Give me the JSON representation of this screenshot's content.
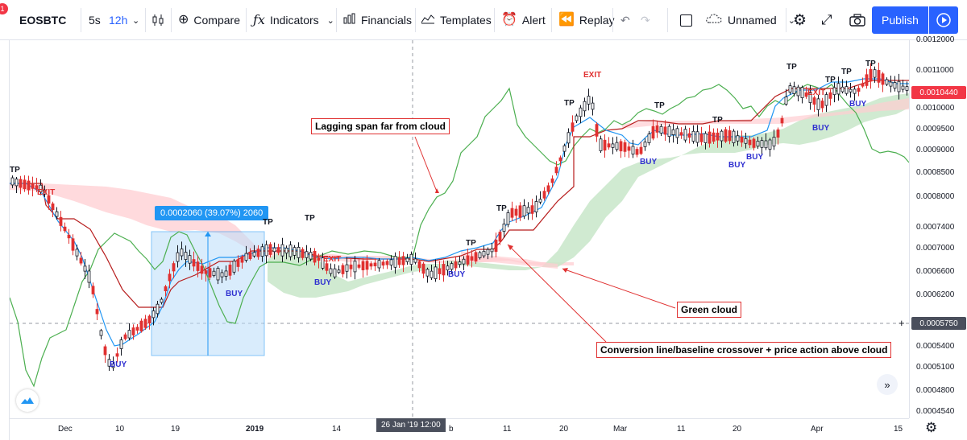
{
  "toolbar": {
    "notification_count": "1",
    "symbol": "EOSBTC",
    "intervals": [
      "5s",
      "12h"
    ],
    "compare": "Compare",
    "indicators": "Indicators",
    "financials": "Financials",
    "templates": "Templates",
    "alert": "Alert",
    "replay": "Replay",
    "layout_name": "Unnamed",
    "publish": "Publish"
  },
  "price_axis": {
    "labels": [
      "0.0012000",
      "0.0011000",
      "0.0010000",
      "0.0009500",
      "0.0009000",
      "0.0008500",
      "0.0008000",
      "0.0007400",
      "0.0007000",
      "0.0006600",
      "0.0006200",
      "0.0005400",
      "0.0005100",
      "0.0004800",
      "0.0004540"
    ],
    "last_price": "0.0010440",
    "crosshair_price": "0.0005750",
    "last_price_color": "#f23645",
    "crosshair_color": "#4a4f5c"
  },
  "time_axis": {
    "labels": [
      "Dec",
      "10",
      "19",
      "2019",
      "14",
      "b",
      "11",
      "20",
      "Mar",
      "11",
      "20",
      "Apr",
      "15"
    ],
    "crosshair_time": "26 Jan '19    12:00"
  },
  "measure": {
    "text": "0.0002060 (39.07%) 2060",
    "color": "#2196f3"
  },
  "annotations": {
    "lagging": "Lagging span far from cloud",
    "green_cloud": "Green cloud",
    "crossover": "Conversion line/baseline crossover + price action above cloud"
  },
  "signals": {
    "tp": "TP",
    "buy": "BUY",
    "exit": "EXIT"
  },
  "colors": {
    "up_candle": "#131722",
    "down_candle": "#e03131",
    "conversion_line": "#2196f3",
    "base_line": "#b71c1c",
    "lagging_span": "#4caf50",
    "green_cloud": "#c8e6c9",
    "red_cloud": "#ffcdd2"
  }
}
